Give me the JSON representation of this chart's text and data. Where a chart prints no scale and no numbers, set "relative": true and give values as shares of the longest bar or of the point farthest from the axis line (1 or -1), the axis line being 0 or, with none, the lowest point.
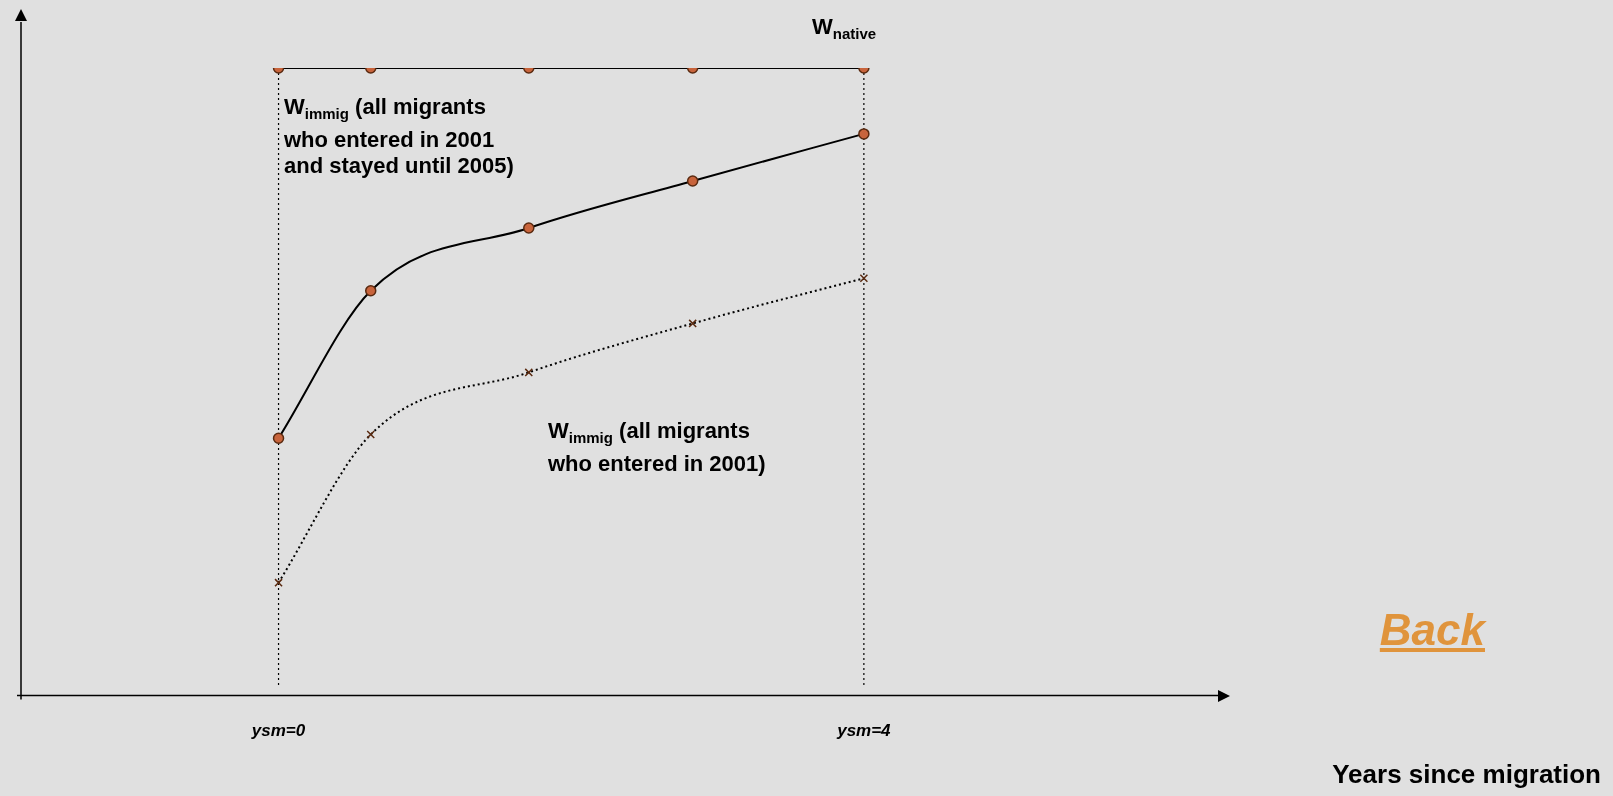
{
  "chart_data": {
    "type": "line",
    "relative": true,
    "xlabel": "Years since migration",
    "x": [
      0,
      0.63,
      1.71,
      2.83,
      4
    ],
    "xlim": [
      -1.76,
      6.42
    ],
    "xticks": [
      {
        "value": 0,
        "label": "ysm=0"
      },
      {
        "value": 4,
        "label": "ysm=4"
      }
    ],
    "series": [
      {
        "color": "#000000",
        "marker": "circle",
        "line_style": "solid",
        "values": [
          1,
          1,
          1,
          1,
          1
        ]
      },
      {
        "color": "#000000",
        "marker": "circle",
        "line_style": "solid",
        "values": [
          0.41,
          0.645,
          0.745,
          0.82,
          0.895
        ]
      },
      {
        "color": "#000000",
        "marker": "cross",
        "line_style": "dotted",
        "values": [
          0.18,
          0.416,
          0.515,
          0.593,
          0.665
        ]
      }
    ],
    "ref_lines": [
      {
        "axis": "x",
        "value": 0,
        "line_style": "dotted",
        "color": "#000000"
      },
      {
        "axis": "x",
        "value": 4,
        "line_style": "dotted",
        "color": "#000000"
      }
    ],
    "annotations": [
      "W$_{native}$",
      "W$_{immig}$ (all migrants\nwho entered in 2001\nand stayed until 2005)",
      "W$_{immig}$ (all migrants\nwho entered in 2001)",
      "Back"
    ],
    "grid": false,
    "legend": false
  }
}
